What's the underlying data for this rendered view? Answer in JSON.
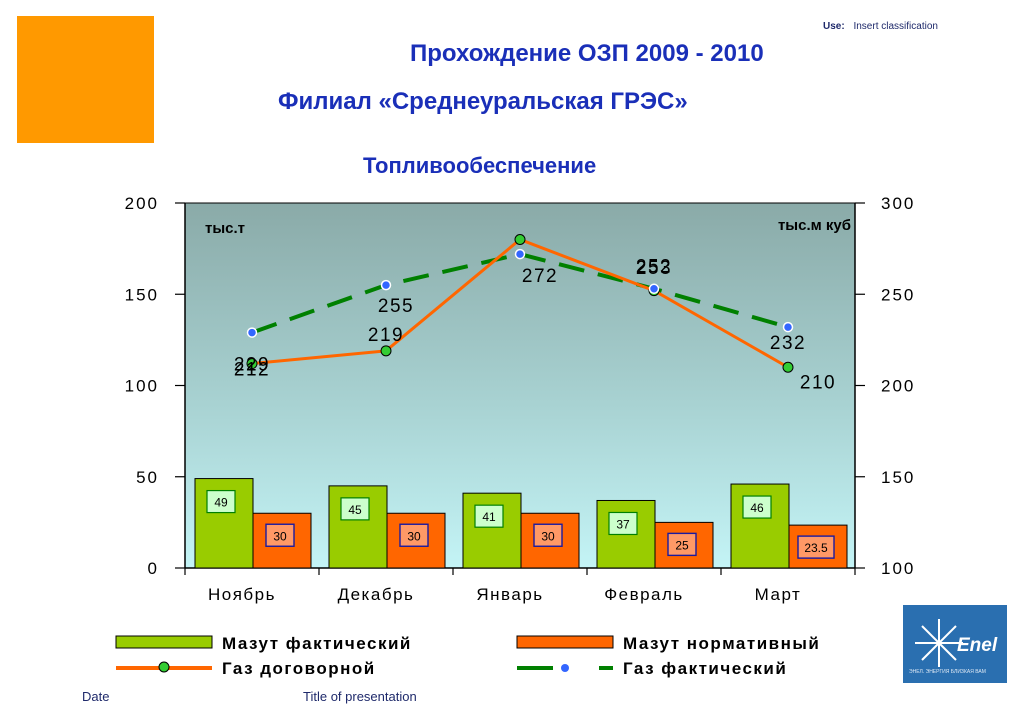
{
  "header": {
    "use_label": "Use:",
    "classification": "Insert classification"
  },
  "titles": {
    "line1": "Прохождение ОЗП   2009 - 2010",
    "line2": "Филиал «Среднеуральская ГРЭС»",
    "line3": "Топливообеспечение"
  },
  "footer": {
    "date": "Date",
    "title": "Title of presentation"
  },
  "logo": {
    "name": "Enel",
    "tagline": "ЭНЕЛ. ЭНЕРГИЯ БЛИЗКАЯ ВАМ"
  },
  "colors": {
    "mazut_fact": "#99CC00",
    "mazut_norm": "#FF6600",
    "gas_contract": "#FF6600",
    "gas_fact": "#008000",
    "gas_fact_marker": "#3366FF",
    "title": "#1a2fb8",
    "accent_square": "#FF9900"
  },
  "chart_data": {
    "type": "bar",
    "categories": [
      "Ноябрь",
      "Декабрь",
      "Январь",
      "Февраль",
      "Март"
    ],
    "left_axis": {
      "unit_label": "тыс.т",
      "ylim": [
        0,
        200
      ],
      "ticks": [
        0,
        50,
        100,
        150,
        200
      ]
    },
    "right_axis": {
      "unit_label": "тыс.м куб",
      "ylim": [
        100,
        300
      ],
      "ticks": [
        100,
        150,
        200,
        250,
        300
      ]
    },
    "series": [
      {
        "name": "Мазут фактический",
        "type": "bar",
        "axis": "left",
        "values": [
          49,
          45,
          41,
          37,
          46
        ],
        "labels": [
          "49",
          "45",
          "41",
          "37",
          "46"
        ]
      },
      {
        "name": "Мазут нормативный",
        "type": "bar",
        "axis": "left",
        "values": [
          30,
          30,
          30,
          25,
          23.5
        ],
        "labels": [
          "30",
          "30",
          "30",
          "25",
          "23.5"
        ]
      },
      {
        "name": "Газ договорной",
        "type": "line",
        "axis": "right",
        "values": [
          212,
          219,
          280,
          252,
          210
        ],
        "labels": [
          "212",
          "219",
          "",
          "252",
          "210"
        ]
      },
      {
        "name": "Газ фактический",
        "type": "line-dashed",
        "axis": "right",
        "values": [
          229,
          255,
          272,
          253,
          232
        ],
        "labels": [
          "229",
          "255",
          "272",
          "253",
          "232"
        ]
      }
    ],
    "legend": "bottom",
    "grid": false
  }
}
